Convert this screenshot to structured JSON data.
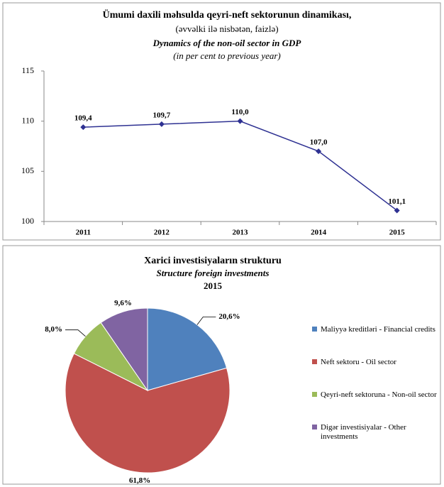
{
  "chart_data": [
    {
      "type": "line",
      "title": "Ümumi daxili məhsulda qeyri-neft sektorunun dinamikası,",
      "subtitle": "(əvvəlki ilə nisbətən, faizlə)",
      "title_en": "Dynamics of the non-oil sector in GDP",
      "subtitle_en": "(in per cent to previous year)",
      "categories": [
        "2011",
        "2012",
        "2013",
        "2014",
        "2015"
      ],
      "values": [
        109.4,
        109.7,
        110.0,
        107.0,
        101.1
      ],
      "value_labels": [
        "109,4",
        "109,7",
        "110,0",
        "107,0",
        "101,1"
      ],
      "color": "#2e3192",
      "ylim": [
        100,
        115
      ],
      "yticks": [
        100,
        105,
        110,
        115
      ],
      "grid": false
    },
    {
      "type": "pie",
      "title": "Xarici investisiyaların strukturu",
      "subtitle": "Structure foreign investments",
      "year": "2015",
      "categories": [
        "Maliyyə kreditləri - Financial credits",
        "Neft sektoru  - Oil sector",
        "Qeyri-neft sektoruna - Non-oil sector",
        "Digər investisiyalar - Other investments"
      ],
      "values": [
        20.6,
        61.8,
        8.0,
        9.6
      ],
      "value_labels": [
        "20,6%",
        "61,8%",
        "8,0%",
        "9,6%"
      ],
      "colors": [
        "#4f81bd",
        "#c0504d",
        "#9bbb59",
        "#8064a2"
      ],
      "legend": "right"
    }
  ]
}
